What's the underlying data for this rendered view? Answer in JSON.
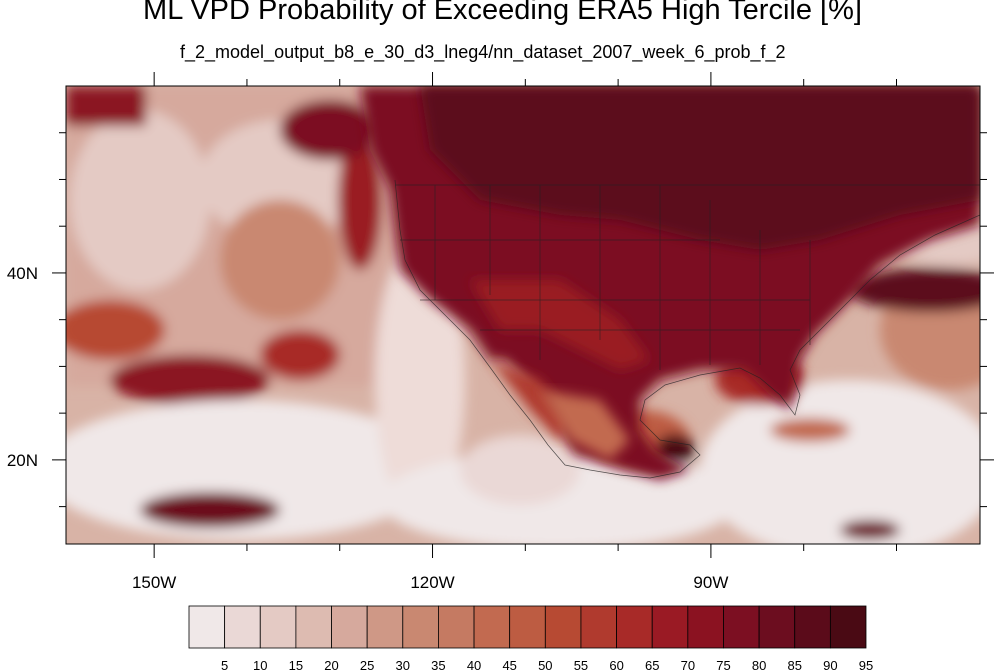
{
  "title": "ML VPD Probability of Exceeding ERA5 High Tercile [%]",
  "subtitle": "f_2_model_output_b8_e_30_d3_lneg4/nn_dataset_2007_week_6_prob_f_2",
  "lat_labels": [
    {
      "value": 40,
      "text": "40N"
    },
    {
      "value": 20,
      "text": "20N"
    }
  ],
  "lon_labels": [
    {
      "value": -150,
      "text": "150W"
    },
    {
      "value": -120,
      "text": "120W"
    },
    {
      "value": -90,
      "text": "90W"
    }
  ],
  "colorbar": {
    "levels": [
      5,
      10,
      15,
      20,
      25,
      30,
      35,
      40,
      45,
      50,
      55,
      60,
      65,
      70,
      75,
      80,
      85,
      90,
      95
    ],
    "colors": [
      "#f0e8e8",
      "#ead8d6",
      "#e4cac4",
      "#ddbbb1",
      "#d6a99d",
      "#cf9886",
      "#c98871",
      "#c57a62",
      "#c26a50",
      "#bd5c42",
      "#b74a33",
      "#b03a2e",
      "#a82a28",
      "#9a1a24",
      "#8b1221",
      "#7c0f22",
      "#6c0d1f",
      "#5b0b1a",
      "#4a0a14"
    ]
  },
  "map": {
    "lon_range": [
      -159.5,
      -61
    ],
    "lat_range": [
      11,
      60
    ],
    "lon_ticks_major": [
      -150,
      -120,
      -90
    ],
    "lon_ticks_minor": [
      -160,
      -140,
      -130,
      -110,
      -100,
      -80,
      -70
    ],
    "lat_ticks_major": [
      20,
      40
    ],
    "lat_ticks_minor": [
      15,
      25,
      30,
      35,
      45,
      50,
      55
    ]
  }
}
